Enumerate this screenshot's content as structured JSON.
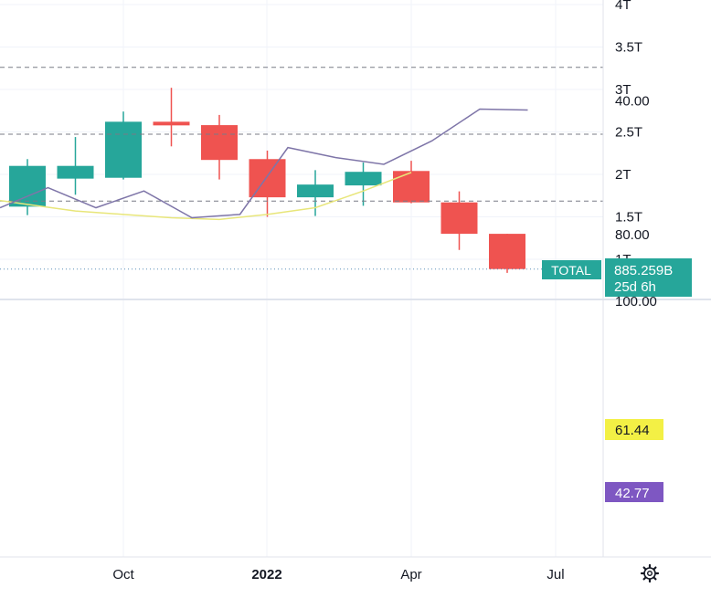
{
  "colors": {
    "up": "#26a69a",
    "down": "#ef5350",
    "grid": "#f0f3fa",
    "axis_text": "#131722",
    "rsi_line": "#7e75a8",
    "rsi_ma_line": "#e8e67a",
    "rsi_band_fill": "#f2f0fa",
    "price_line_dots": "#5c8fb8"
  },
  "labels": {
    "symbol": "TOTAL",
    "last_price": "885.259B",
    "countdown": "25d 6h",
    "rsi_ma_value": "61.44",
    "rsi_value": "42.77"
  },
  "chart_data": [
    {
      "type": "candlestick",
      "interval": "1M",
      "y_ticks": [
        "1T",
        "1.5T",
        "2T",
        "2.5T",
        "3T",
        "3.5T",
        "4T"
      ],
      "x_ticks": [
        "Oct",
        "2022",
        "Apr",
        "Jul"
      ],
      "series": [
        {
          "name": "TOTAL",
          "candles": [
            {
              "o": 1.62,
              "h": 2.18,
              "l": 1.52,
              "c": 2.1
            },
            {
              "o": 1.95,
              "h": 2.44,
              "l": 1.76,
              "c": 2.1
            },
            {
              "o": 1.96,
              "h": 2.74,
              "l": 1.94,
              "c": 2.62
            },
            {
              "o": 2.62,
              "h": 3.02,
              "l": 2.33,
              "c": 2.58
            },
            {
              "o": 2.58,
              "h": 2.7,
              "l": 1.94,
              "c": 2.17
            },
            {
              "o": 2.18,
              "h": 2.28,
              "l": 1.5,
              "c": 1.73
            },
            {
              "o": 1.73,
              "h": 2.05,
              "l": 1.51,
              "c": 1.88
            },
            {
              "o": 1.87,
              "h": 2.14,
              "l": 1.63,
              "c": 2.03
            },
            {
              "o": 2.04,
              "h": 2.16,
              "l": 1.66,
              "c": 1.67
            },
            {
              "o": 1.67,
              "h": 1.8,
              "l": 1.11,
              "c": 1.3
            },
            {
              "o": 1.3,
              "h": 1.3,
              "l": 0.84,
              "c": 0.885
            }
          ]
        }
      ],
      "last_value": 0.885
    },
    {
      "type": "line",
      "indicator": "RSI",
      "y_ticks": [
        "100.00",
        "80.00",
        "40.00"
      ],
      "bands": [
        70,
        50,
        30
      ],
      "series": [
        {
          "name": "RSI",
          "values": [
            72,
            66,
            72,
            67,
            75,
            74,
            54,
            57,
            59,
            52,
            42.5,
            42.77
          ]
        },
        {
          "name": "RSI MA",
          "values": [
            69,
            71,
            73,
            74,
            75,
            75.5,
            74,
            72,
            67,
            61.44
          ]
        }
      ]
    }
  ]
}
